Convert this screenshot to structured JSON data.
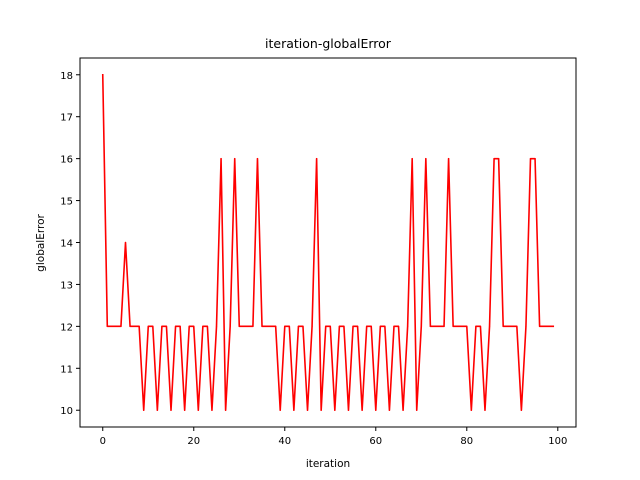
{
  "chart_data": {
    "type": "line",
    "title": "iteration-globalError",
    "xlabel": "iteration",
    "ylabel": "globalError",
    "xlim": [
      -5,
      104
    ],
    "ylim": [
      9.6,
      18.4
    ],
    "xticks": [
      0,
      20,
      40,
      60,
      80,
      100
    ],
    "yticks": [
      10,
      11,
      12,
      13,
      14,
      15,
      16,
      17,
      18
    ],
    "grid": false,
    "legend": "none",
    "series": [
      {
        "color": "#ff0000",
        "x": [
          0,
          1,
          2,
          3,
          4,
          5,
          6,
          7,
          8,
          9,
          10,
          11,
          12,
          13,
          14,
          15,
          16,
          17,
          18,
          19,
          20,
          21,
          22,
          23,
          24,
          25,
          26,
          27,
          28,
          29,
          30,
          31,
          32,
          33,
          34,
          35,
          36,
          37,
          38,
          39,
          40,
          41,
          42,
          43,
          44,
          45,
          46,
          47,
          48,
          49,
          50,
          51,
          52,
          53,
          54,
          55,
          56,
          57,
          58,
          59,
          60,
          61,
          62,
          63,
          64,
          65,
          66,
          67,
          68,
          69,
          70,
          71,
          72,
          73,
          74,
          75,
          76,
          77,
          78,
          79,
          80,
          81,
          82,
          83,
          84,
          85,
          86,
          87,
          88,
          89,
          90,
          91,
          92,
          93,
          94,
          95,
          96,
          97,
          98,
          99
        ],
        "values": [
          18,
          12,
          12,
          12,
          12,
          14,
          12,
          12,
          12,
          10,
          12,
          12,
          10,
          12,
          12,
          10,
          12,
          12,
          10,
          12,
          12,
          10,
          12,
          12,
          10,
          12,
          16,
          10,
          12,
          16,
          12,
          12,
          12,
          12,
          16,
          12,
          12,
          12,
          12,
          10,
          12,
          12,
          10,
          12,
          12,
          10,
          12,
          16,
          10,
          12,
          12,
          10,
          12,
          12,
          10,
          12,
          12,
          10,
          12,
          12,
          10,
          12,
          12,
          10,
          12,
          12,
          10,
          12,
          16,
          10,
          12,
          16,
          12,
          12,
          12,
          12,
          16,
          12,
          12,
          12,
          12,
          10,
          12,
          12,
          10,
          12,
          16,
          16,
          12,
          12,
          12,
          12,
          10,
          12,
          16,
          16,
          12,
          12,
          12,
          12
        ]
      }
    ]
  }
}
